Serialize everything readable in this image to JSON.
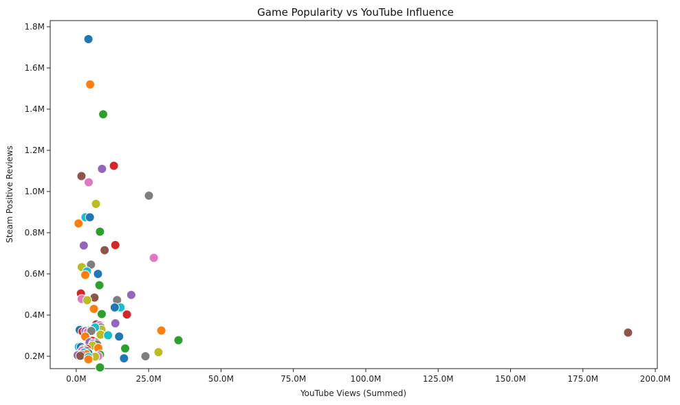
{
  "chart_data": {
    "type": "scatter",
    "title": "Game Popularity vs YouTube Influence",
    "xlabel": "YouTube Views (Summed)",
    "ylabel": "Steam Positive Reviews",
    "xlim": [
      -9000000,
      200700000
    ],
    "ylim": [
      140000,
      1830000
    ],
    "xticks": [
      0,
      25000000,
      50000000,
      75000000,
      100000000,
      125000000,
      150000000,
      175000000,
      200000000
    ],
    "xtick_labels": [
      "0.0M",
      "25.0M",
      "50.0M",
      "75.0M",
      "100.0M",
      "125.0M",
      "150.0M",
      "175.0M",
      "200.0M"
    ],
    "yticks": [
      200000,
      400000,
      600000,
      800000,
      1000000,
      1200000,
      1400000,
      1600000,
      1800000
    ],
    "ytick_labels": [
      "0.2M",
      "0.4M",
      "0.6M",
      "0.8M",
      "1.0M",
      "1.2M",
      "1.4M",
      "1.6M",
      "1.8M"
    ],
    "grid": false,
    "legend": "none",
    "palette": [
      "#1f77b4",
      "#ff7f0e",
      "#2ca02c",
      "#d62728",
      "#9467bd",
      "#8c564b",
      "#e377c2",
      "#7f7f7f",
      "#bcbd22",
      "#17becf"
    ],
    "points": [
      {
        "x": 4200000,
        "y": 1740000,
        "color": "#1f77b4"
      },
      {
        "x": 4800000,
        "y": 1520000,
        "color": "#ff7f0e"
      },
      {
        "x": 9300000,
        "y": 1375000,
        "color": "#2ca02c"
      },
      {
        "x": 13000000,
        "y": 1125000,
        "color": "#d62728"
      },
      {
        "x": 8900000,
        "y": 1110000,
        "color": "#9467bd"
      },
      {
        "x": 1800000,
        "y": 1075000,
        "color": "#8c564b"
      },
      {
        "x": 4300000,
        "y": 1045000,
        "color": "#e377c2"
      },
      {
        "x": 25100000,
        "y": 980000,
        "color": "#7f7f7f"
      },
      {
        "x": 6800000,
        "y": 940000,
        "color": "#bcbd22"
      },
      {
        "x": 3200000,
        "y": 875000,
        "color": "#17becf"
      },
      {
        "x": 4700000,
        "y": 875000,
        "color": "#1f77b4"
      },
      {
        "x": 800000,
        "y": 845000,
        "color": "#ff7f0e"
      },
      {
        "x": 8200000,
        "y": 805000,
        "color": "#2ca02c"
      },
      {
        "x": 13500000,
        "y": 740000,
        "color": "#d62728"
      },
      {
        "x": 2600000,
        "y": 738000,
        "color": "#9467bd"
      },
      {
        "x": 9800000,
        "y": 715000,
        "color": "#8c564b"
      },
      {
        "x": 26800000,
        "y": 678000,
        "color": "#e377c2"
      },
      {
        "x": 5100000,
        "y": 645000,
        "color": "#7f7f7f"
      },
      {
        "x": 1900000,
        "y": 633000,
        "color": "#bcbd22"
      },
      {
        "x": 3700000,
        "y": 612000,
        "color": "#17becf"
      },
      {
        "x": 7500000,
        "y": 600000,
        "color": "#1f77b4"
      },
      {
        "x": 3100000,
        "y": 595000,
        "color": "#ff7f0e"
      },
      {
        "x": 8000000,
        "y": 545000,
        "color": "#2ca02c"
      },
      {
        "x": 1600000,
        "y": 505000,
        "color": "#d62728"
      },
      {
        "x": 19000000,
        "y": 498000,
        "color": "#9467bd"
      },
      {
        "x": 6300000,
        "y": 485000,
        "color": "#8c564b"
      },
      {
        "x": 1900000,
        "y": 478000,
        "color": "#e377c2"
      },
      {
        "x": 14100000,
        "y": 473000,
        "color": "#7f7f7f"
      },
      {
        "x": 3800000,
        "y": 472000,
        "color": "#bcbd22"
      },
      {
        "x": 15300000,
        "y": 437000,
        "color": "#17becf"
      },
      {
        "x": 13300000,
        "y": 437000,
        "color": "#1f77b4"
      },
      {
        "x": 6100000,
        "y": 430000,
        "color": "#ff7f0e"
      },
      {
        "x": 8800000,
        "y": 405000,
        "color": "#2ca02c"
      },
      {
        "x": 17500000,
        "y": 403000,
        "color": "#d62728"
      },
      {
        "x": 13500000,
        "y": 360000,
        "color": "#9467bd"
      },
      {
        "x": 6900000,
        "y": 355000,
        "color": "#8c564b"
      },
      {
        "x": 8100000,
        "y": 350000,
        "color": "#e377c2"
      },
      {
        "x": 8500000,
        "y": 340000,
        "color": "#7f7f7f"
      },
      {
        "x": 8700000,
        "y": 330000,
        "color": "#bcbd22"
      },
      {
        "x": 6500000,
        "y": 340000,
        "color": "#17becf"
      },
      {
        "x": 1200000,
        "y": 328000,
        "color": "#1f77b4"
      },
      {
        "x": 29400000,
        "y": 325000,
        "color": "#ff7f0e"
      },
      {
        "x": 4500000,
        "y": 325000,
        "color": "#2ca02c"
      },
      {
        "x": 2200000,
        "y": 320000,
        "color": "#d62728"
      },
      {
        "x": 3200000,
        "y": 322000,
        "color": "#9467bd"
      },
      {
        "x": 190600000,
        "y": 315000,
        "color": "#8c564b"
      },
      {
        "x": 3900000,
        "y": 316000,
        "color": "#e377c2"
      },
      {
        "x": 5200000,
        "y": 323000,
        "color": "#7f7f7f"
      },
      {
        "x": 8400000,
        "y": 305000,
        "color": "#bcbd22"
      },
      {
        "x": 11000000,
        "y": 302000,
        "color": "#17becf"
      },
      {
        "x": 14800000,
        "y": 296000,
        "color": "#1f77b4"
      },
      {
        "x": 3100000,
        "y": 296000,
        "color": "#ff7f0e"
      },
      {
        "x": 35300000,
        "y": 278000,
        "color": "#2ca02c"
      },
      {
        "x": 5600000,
        "y": 275000,
        "color": "#d62728"
      },
      {
        "x": 4600000,
        "y": 268000,
        "color": "#9467bd"
      },
      {
        "x": 6800000,
        "y": 266000,
        "color": "#8c564b"
      },
      {
        "x": 5800000,
        "y": 262000,
        "color": "#e377c2"
      },
      {
        "x": 7200000,
        "y": 258000,
        "color": "#7f7f7f"
      },
      {
        "x": 5600000,
        "y": 252000,
        "color": "#bcbd22"
      },
      {
        "x": 900000,
        "y": 246000,
        "color": "#17becf"
      },
      {
        "x": 1600000,
        "y": 245000,
        "color": "#1f77b4"
      },
      {
        "x": 7600000,
        "y": 240000,
        "color": "#ff7f0e"
      },
      {
        "x": 16900000,
        "y": 238000,
        "color": "#2ca02c"
      },
      {
        "x": 3700000,
        "y": 236000,
        "color": "#d62728"
      },
      {
        "x": 2400000,
        "y": 234000,
        "color": "#9467bd"
      },
      {
        "x": 3000000,
        "y": 231000,
        "color": "#8c564b"
      },
      {
        "x": 2100000,
        "y": 228000,
        "color": "#e377c2"
      },
      {
        "x": 3600000,
        "y": 226000,
        "color": "#7f7f7f"
      },
      {
        "x": 28400000,
        "y": 220000,
        "color": "#bcbd22"
      },
      {
        "x": 2600000,
        "y": 218000,
        "color": "#17becf"
      },
      {
        "x": 4200000,
        "y": 214000,
        "color": "#1f77b4"
      },
      {
        "x": 3500000,
        "y": 210000,
        "color": "#ff7f0e"
      },
      {
        "x": 8200000,
        "y": 208000,
        "color": "#2ca02c"
      },
      {
        "x": 1700000,
        "y": 207000,
        "color": "#d62728"
      },
      {
        "x": 500000,
        "y": 205000,
        "color": "#9467bd"
      },
      {
        "x": 1400000,
        "y": 202000,
        "color": "#8c564b"
      },
      {
        "x": 7600000,
        "y": 201000,
        "color": "#e377c2"
      },
      {
        "x": 23900000,
        "y": 200000,
        "color": "#7f7f7f"
      },
      {
        "x": 6500000,
        "y": 198000,
        "color": "#bcbd22"
      },
      {
        "x": 4200000,
        "y": 196000,
        "color": "#17becf"
      },
      {
        "x": 16500000,
        "y": 190000,
        "color": "#1f77b4"
      },
      {
        "x": 4200000,
        "y": 185000,
        "color": "#ff7f0e"
      },
      {
        "x": 8200000,
        "y": 146000,
        "color": "#2ca02c"
      }
    ]
  }
}
